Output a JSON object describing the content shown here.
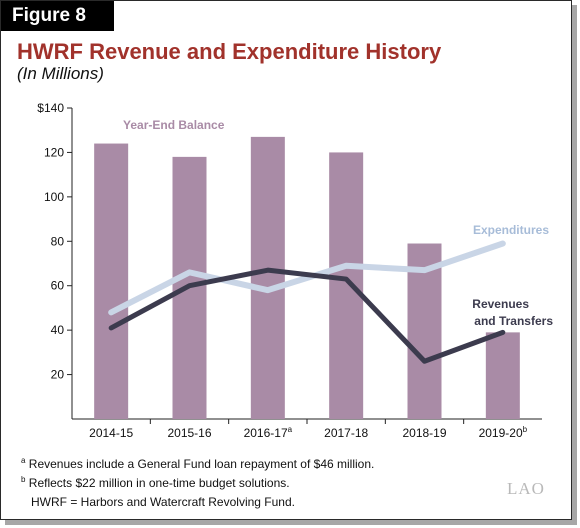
{
  "figure_label": "Figure 8",
  "title": "HWRF Revenue and Expenditure History",
  "subtitle": "(In Millions)",
  "chart_data": {
    "type": "bar",
    "categories": [
      "2014-15",
      "2015-16",
      "2016-17",
      "2017-18",
      "2018-19",
      "2019-20"
    ],
    "category_superscripts": [
      "",
      "",
      "a",
      "",
      "",
      "b"
    ],
    "ylim": [
      0,
      140
    ],
    "yticks": [
      20,
      40,
      60,
      80,
      100,
      120,
      140
    ],
    "ytick_labels": [
      "20",
      "40",
      "60",
      "80",
      "100",
      "120",
      "$140"
    ],
    "grid": false,
    "series": [
      {
        "name": "Year-End Balance",
        "kind": "bar",
        "color": "#a98ba6",
        "values": [
          124,
          118,
          127,
          120,
          79,
          39
        ]
      },
      {
        "name": "Expenditures",
        "kind": "line",
        "color": "#c9d5e6",
        "values": [
          48,
          66,
          58,
          69,
          67,
          79
        ]
      },
      {
        "name": "Revenues and Transfers",
        "kind": "line",
        "color": "#3c3b4e",
        "values": [
          41,
          60,
          67,
          63,
          26,
          39
        ]
      }
    ],
    "series_labels": {
      "balance": "Year-End Balance",
      "expenditures": "Expenditures",
      "revenues_line1": "Revenues",
      "revenues_line2": "and Transfers"
    }
  },
  "footnotes": {
    "a_marker": "a",
    "a_text": "Revenues include a General Fund loan repayment of $46 million.",
    "b_marker": "b",
    "b_text": "Reflects $22 million in one-time budget solutions.",
    "abbrev": "HWRF = Harbors and Watercraft Revolving Fund."
  },
  "logo_text": "LAO"
}
